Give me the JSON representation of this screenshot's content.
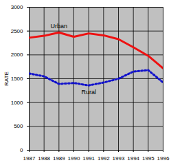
{
  "chart_data": {
    "type": "line",
    "x": [
      1987,
      1988,
      1989,
      1990,
      1991,
      1992,
      1993,
      1994,
      1995,
      1996
    ],
    "series": [
      {
        "name": "Urban",
        "color": "#ee1111",
        "line_style": "solid",
        "values": [
          2360,
          2400,
          2470,
          2380,
          2450,
          2410,
          2330,
          2160,
          1980,
          1720
        ]
      },
      {
        "name": "Rural",
        "color": "#1111cc",
        "line_style": "dotted",
        "values": [
          1610,
          1550,
          1390,
          1410,
          1360,
          1420,
          1500,
          1650,
          1680,
          1420
        ]
      }
    ],
    "y_label": "RATE",
    "xlim": [
      1987,
      1996
    ],
    "xticks": [
      1987,
      1988,
      1989,
      1990,
      1991,
      1992,
      1993,
      1994,
      1995,
      1996
    ],
    "ylim": [
      0,
      3000
    ],
    "yticks": [
      0,
      500,
      1000,
      1500,
      2000,
      2500,
      3000
    ],
    "grid": true
  }
}
